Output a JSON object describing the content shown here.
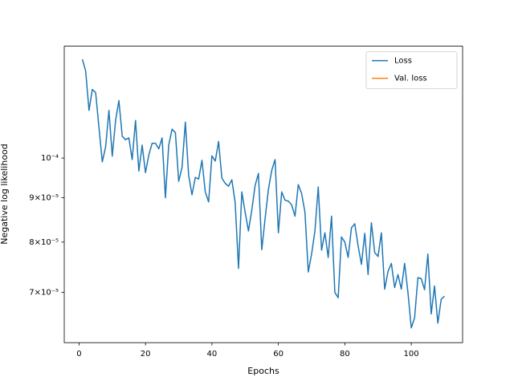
{
  "chart_data": {
    "type": "line",
    "x_label": "Epochs",
    "y_label": "Negative log likelihood",
    "log_y": true,
    "legend": "upper right",
    "xlim": [
      -4.45,
      115.45
    ],
    "xticks": [
      0,
      20,
      40,
      60,
      80,
      100
    ],
    "ylim": [
      6.125e-05,
      0.0001346
    ],
    "yticks": [
      {
        "value": 7e-05,
        "label": "7×10⁻⁵"
      },
      {
        "value": 8e-05,
        "label": "8×10⁻⁵"
      },
      {
        "value": 9e-05,
        "label": "9×10⁻⁵"
      },
      {
        "value": 0.0001,
        "label": "10⁻⁴"
      }
    ],
    "x": [
      1,
      2,
      3,
      4,
      5,
      6,
      7,
      8,
      9,
      10,
      11,
      12,
      13,
      14,
      15,
      16,
      17,
      18,
      19,
      20,
      21,
      22,
      23,
      24,
      25,
      26,
      27,
      28,
      29,
      30,
      31,
      32,
      33,
      34,
      35,
      36,
      37,
      38,
      39,
      40,
      41,
      42,
      43,
      44,
      45,
      46,
      47,
      48,
      49,
      50,
      51,
      52,
      53,
      54,
      55,
      56,
      57,
      58,
      59,
      60,
      61,
      62,
      63,
      64,
      65,
      66,
      67,
      68,
      69,
      70,
      71,
      72,
      73,
      74,
      75,
      76,
      77,
      78,
      79,
      80,
      81,
      82,
      83,
      84,
      85,
      86,
      87,
      88,
      89,
      90,
      91,
      92,
      93,
      94,
      95,
      96,
      97,
      98,
      99,
      100,
      101,
      102,
      103,
      104,
      105,
      106,
      107,
      108,
      109,
      110
    ],
    "series": [
      {
        "name": "Loss",
        "color": "#1f77b4",
        "values": [
          0.00013,
          0.000126,
          0.0001135,
          0.00012,
          0.000119,
          0.0001085,
          9.9e-05,
          0.000103,
          0.0001135,
          0.0001005,
          0.0001105,
          0.0001165,
          0.000106,
          0.000105,
          0.0001055,
          9.96e-05,
          0.0001105,
          9.66e-05,
          0.0001035,
          9.62e-05,
          0.0001008,
          0.000104,
          0.000104,
          0.0001025,
          0.0001055,
          9e-05,
          0.0001035,
          0.000108,
          0.000107,
          9.4e-05,
          9.75e-05,
          0.00011,
          9.55e-05,
          9.07e-05,
          9.5e-05,
          9.46e-05,
          9.94e-05,
          9.14e-05,
          8.9e-05,
          0.0001006,
          9.92e-05,
          0.0001045,
          9.48e-05,
          9.35e-05,
          9.28e-05,
          9.44e-05,
          8.88e-05,
          7.46e-05,
          9.14e-05,
          8.66e-05,
          8.24e-05,
          8.71e-05,
          9.3e-05,
          9.6e-05,
          7.84e-05,
          8.51e-05,
          9.2e-05,
          9.68e-05,
          9.96e-05,
          8.2e-05,
          9.14e-05,
          8.94e-05,
          8.92e-05,
          8.83e-05,
          8.57e-05,
          9.32e-05,
          9.1e-05,
          8.66e-05,
          7.39e-05,
          7.75e-05,
          8.24e-05,
          9.26e-05,
          7.83e-05,
          8.2e-05,
          7.68e-05,
          8.57e-05,
          7e-05,
          6.9e-05,
          8.11e-05,
          8e-05,
          7.68e-05,
          8.31e-05,
          8.4e-05,
          7.92e-05,
          7.54e-05,
          8.19e-05,
          7.34e-05,
          8.42e-05,
          7.78e-05,
          7.7e-05,
          8.2e-05,
          7.06e-05,
          7.4e-05,
          7.56e-05,
          7.09e-05,
          7.34e-05,
          7.06e-05,
          7.56e-05,
          7e-05,
          6.37e-05,
          6.54e-05,
          7.28e-05,
          7.26e-05,
          7.05e-05,
          7.75e-05,
          6.61e-05,
          7.12e-05,
          6.45e-05,
          6.87e-05,
          6.93e-05
        ]
      },
      {
        "name": "Val. loss",
        "color": "#ff7f0e",
        "values": [
          null,
          null,
          null,
          null,
          null,
          null,
          null,
          null,
          null,
          null,
          null,
          null,
          null,
          null,
          null,
          null,
          null,
          null,
          null,
          null,
          null,
          null,
          null,
          null,
          null,
          null,
          null,
          null,
          null,
          null,
          null,
          null,
          null,
          null,
          null,
          null,
          null,
          null,
          null,
          null,
          null,
          null,
          null,
          null,
          null,
          null,
          null,
          null,
          null,
          null,
          null,
          null,
          null,
          null,
          null,
          null,
          null,
          null,
          null,
          null,
          null,
          null,
          null,
          null,
          null,
          null,
          null,
          null,
          null,
          null,
          null,
          null,
          null,
          null,
          null,
          null,
          null,
          null,
          null,
          null,
          null,
          null,
          null,
          null,
          null,
          null,
          null,
          null,
          null,
          null,
          null,
          null,
          null,
          null,
          null,
          null,
          null,
          null,
          null,
          null,
          null,
          null,
          null,
          null,
          null,
          null,
          null,
          null,
          null,
          null
        ]
      }
    ]
  }
}
